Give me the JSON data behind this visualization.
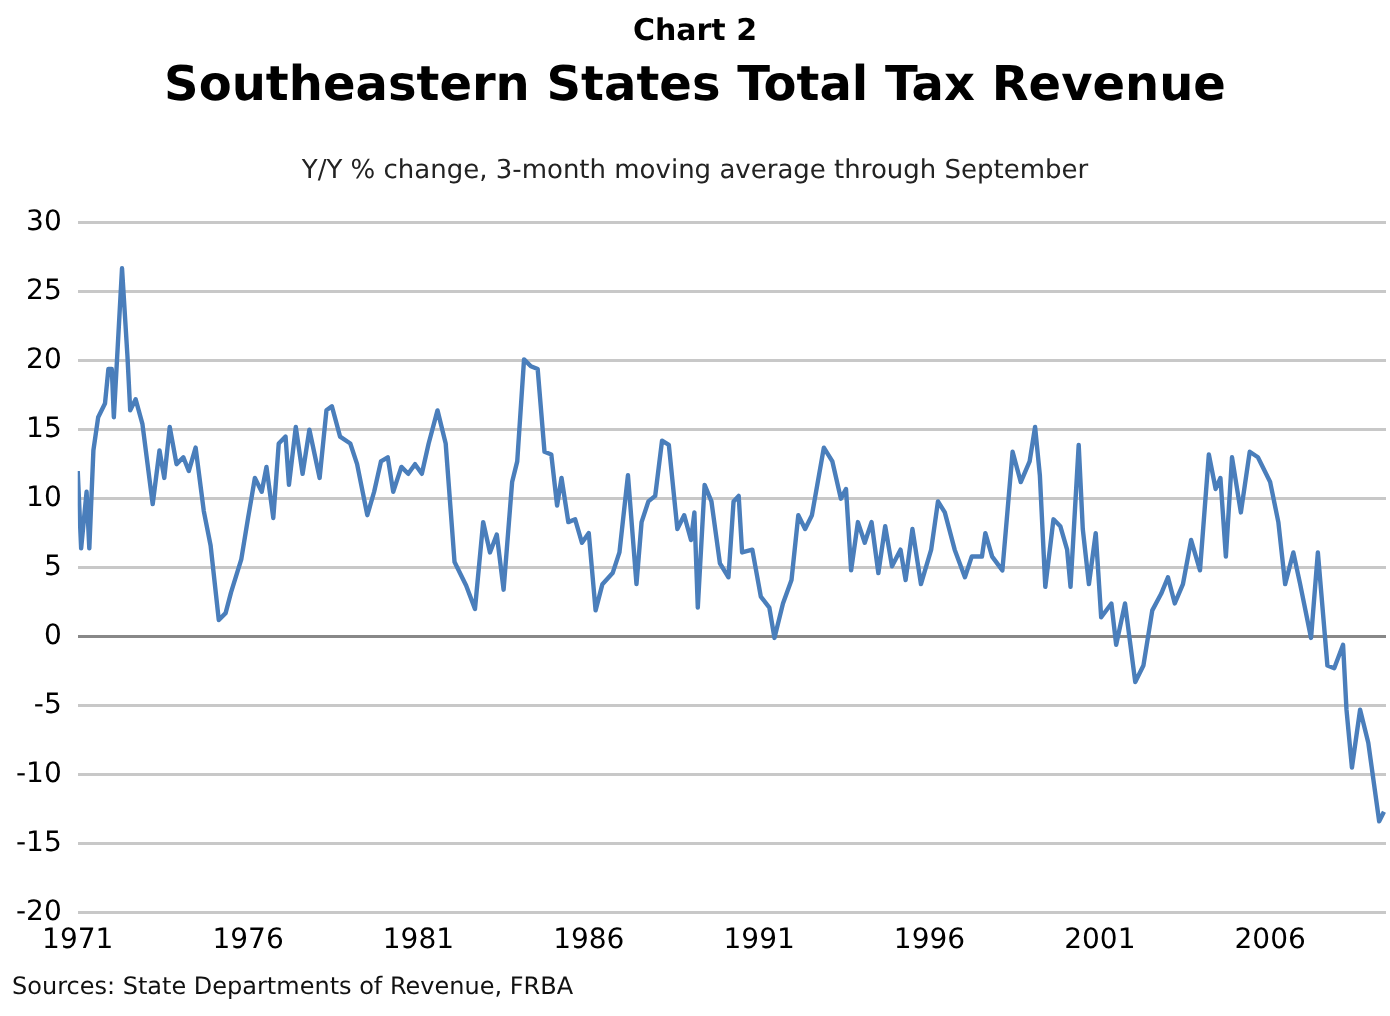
{
  "chart_data": {
    "type": "line",
    "title": "Southeastern States Total Tax Revenue",
    "subtitle": "Y/Y % change, 3-month moving average through September",
    "annotations": [
      "Chart 2",
      "Sources: State Departments of Revenue, FRBA"
    ],
    "x": [
      1971.0,
      1971.1,
      1971.26,
      1971.34,
      1971.46,
      1971.6,
      1971.8,
      1971.9,
      1972.0,
      1972.06,
      1972.3,
      1972.46,
      1972.54,
      1972.7,
      1972.9,
      1973.2,
      1973.4,
      1973.54,
      1973.7,
      1973.9,
      1974.1,
      1974.26,
      1974.46,
      1974.7,
      1974.9,
      1975.14,
      1975.34,
      1975.5,
      1975.8,
      1976.0,
      1976.2,
      1976.4,
      1976.54,
      1976.74,
      1976.9,
      1977.1,
      1977.2,
      1977.4,
      1977.6,
      1977.8,
      1978.1,
      1978.3,
      1978.46,
      1978.7,
      1979.0,
      1979.2,
      1979.5,
      1979.7,
      1979.9,
      1980.1,
      1980.26,
      1980.5,
      1980.7,
      1980.9,
      1981.1,
      1981.3,
      1981.56,
      1981.8,
      1982.06,
      1982.4,
      1982.66,
      1982.9,
      1983.1,
      1983.3,
      1983.5,
      1983.75,
      1983.9,
      1984.1,
      1984.3,
      1984.5,
      1984.7,
      1984.9,
      1985.07,
      1985.2,
      1985.4,
      1985.6,
      1985.8,
      1986.0,
      1986.2,
      1986.4,
      1986.7,
      1986.9,
      1987.15,
      1987.4,
      1987.55,
      1987.75,
      1987.95,
      1988.15,
      1988.35,
      1988.6,
      1988.8,
      1989.0,
      1989.1,
      1989.2,
      1989.4,
      1989.6,
      1989.85,
      1990.1,
      1990.25,
      1990.4,
      1990.5,
      1990.8,
      1991.05,
      1991.3,
      1991.45,
      1991.7,
      1991.95,
      1992.15,
      1992.35,
      1992.55,
      1992.9,
      1993.15,
      1993.4,
      1993.55,
      1993.7,
      1993.9,
      1994.1,
      1994.3,
      1994.5,
      1994.7,
      1994.9,
      1995.15,
      1995.3,
      1995.5,
      1995.75,
      1996.05,
      1996.25,
      1996.45,
      1996.74,
      1997.04,
      1997.24,
      1997.54,
      1997.64,
      1997.84,
      1998.14,
      1998.44,
      1998.68,
      1998.94,
      1999.1,
      1999.24,
      1999.4,
      1999.64,
      1999.84,
      2000.04,
      2000.14,
      2000.38,
      2000.5,
      2000.68,
      2000.88,
      2001.04,
      2001.34,
      2001.48,
      2001.74,
      2002.04,
      2002.28,
      2002.54,
      2002.8,
      2003.0,
      2003.2,
      2003.44,
      2003.68,
      2003.94,
      2004.2,
      2004.4,
      2004.54,
      2004.7,
      2004.88,
      2005.14,
      2005.4,
      2005.64,
      2005.84,
      2006.0,
      2006.24,
      2006.44,
      2006.68,
      2006.88,
      2007.2,
      2007.4,
      2007.68,
      2007.88,
      2008.14,
      2008.24,
      2008.4,
      2008.64,
      2008.88,
      2009.2,
      2009.34
    ],
    "values": [
      12.0,
      6.4,
      10.5,
      6.4,
      13.5,
      15.9,
      16.9,
      19.4,
      19.4,
      15.9,
      26.7,
      20.3,
      16.4,
      17.2,
      15.4,
      9.6,
      13.5,
      11.5,
      15.2,
      12.5,
      13.0,
      12.0,
      13.7,
      9.1,
      6.6,
      1.2,
      1.7,
      3.2,
      5.6,
      8.6,
      11.5,
      10.5,
      12.3,
      8.6,
      14.0,
      14.5,
      11.0,
      15.2,
      11.8,
      15.0,
      11.5,
      16.4,
      16.7,
      14.5,
      14.0,
      12.5,
      8.8,
      10.5,
      12.7,
      13.0,
      10.5,
      12.3,
      11.8,
      12.5,
      11.8,
      14.0,
      16.4,
      14.0,
      5.4,
      3.7,
      2.0,
      8.3,
      6.1,
      7.4,
      3.4,
      11.2,
      12.7,
      20.1,
      19.6,
      19.4,
      13.4,
      13.2,
      9.5,
      11.5,
      8.3,
      8.5,
      6.8,
      7.5,
      1.9,
      3.8,
      4.6,
      6.1,
      11.7,
      3.8,
      8.3,
      9.8,
      10.2,
      14.2,
      13.9,
      7.8,
      8.8,
      7.0,
      9.0,
      2.1,
      11.0,
      9.8,
      5.3,
      4.3,
      9.8,
      10.2,
      6.1,
      6.3,
      2.9,
      2.1,
      -0.1,
      2.4,
      4.1,
      8.8,
      7.8,
      8.8,
      13.7,
      12.7,
      10.0,
      10.7,
      4.8,
      8.3,
      6.8,
      8.3,
      4.6,
      8.0,
      5.1,
      6.3,
      4.1,
      7.8,
      3.8,
      6.3,
      9.8,
      9.0,
      6.3,
      4.3,
      5.8,
      5.8,
      7.5,
      5.8,
      4.8,
      13.4,
      11.2,
      12.7,
      15.2,
      11.7,
      3.6,
      8.5,
      8.0,
      6.3,
      3.6,
      13.9,
      7.8,
      3.8,
      7.5,
      1.4,
      2.4,
      -0.6,
      2.4,
      -3.3,
      -2.1,
      1.9,
      3.1,
      4.3,
      2.4,
      3.8,
      7.0,
      4.8,
      13.2,
      10.7,
      11.5,
      5.8,
      13.0,
      9.0,
      13.4,
      13.0,
      12.0,
      11.2,
      8.3,
      3.8,
      6.1,
      3.8,
      -0.1,
      6.1,
      -2.1,
      -2.3,
      -0.6,
      -5.3,
      -9.5,
      -5.3,
      -7.7,
      -13.4,
      -12.7
    ],
    "color": "#4a7ebb",
    "xlim": [
      1971,
      2009.4
    ],
    "xticks": [
      1971,
      1976,
      1981,
      1986,
      1991,
      1996,
      2001,
      2006
    ],
    "ylim": [
      -20,
      30
    ],
    "yticks": [
      -20,
      -15,
      -10,
      -5,
      0,
      5,
      10,
      15,
      20,
      25,
      30
    ],
    "grid": "y",
    "marker": "none",
    "line_style": "solid"
  }
}
